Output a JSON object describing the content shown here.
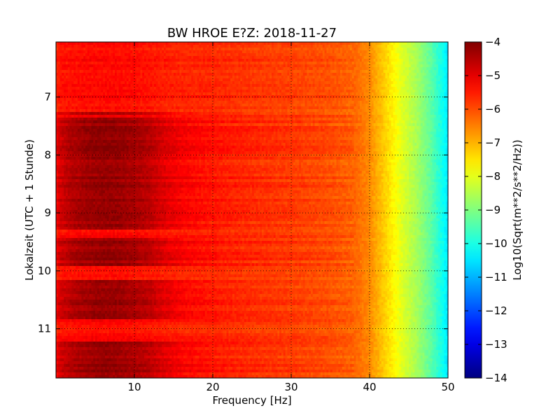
{
  "chart_data": {
    "type": "heatmap",
    "title": "BW HROE E?Z: 2018-11-27",
    "xlabel": "Frequency [Hz]",
    "ylabel": "Lokalzeit (UTC + 1 Stunde)",
    "colorbar_label": "Log10(Sqrt(m**2/s**2/Hz))",
    "xlim": [
      0,
      50
    ],
    "ylim": [
      6.05,
      11.85
    ],
    "y_inverted": true,
    "xticks": [
      10,
      20,
      30,
      40,
      50
    ],
    "xtick_labels": [
      "10",
      "20",
      "30",
      "40",
      "50"
    ],
    "yticks": [
      7,
      8,
      9,
      10,
      11
    ],
    "ytick_labels": [
      "7",
      "8",
      "9",
      "10",
      "11"
    ],
    "clim": [
      -14,
      -4
    ],
    "cticks": [
      -4,
      -5,
      -6,
      -7,
      -8,
      -9,
      -10,
      -11,
      -12,
      -13,
      -14
    ],
    "ctick_labels": [
      "−4",
      "−5",
      "−6",
      "−7",
      "−8",
      "−9",
      "−10",
      "−11",
      "−12",
      "−13",
      "−14"
    ],
    "colormap": "jet",
    "grid": "dotted",
    "profile": {
      "frequency": [
        0,
        0.5,
        2,
        4,
        6,
        8,
        10,
        12,
        14,
        16,
        20,
        25,
        30,
        35,
        38,
        40,
        42,
        44,
        46,
        48,
        49.5,
        50
      ],
      "quiet_level": [
        -5.6,
        -5.4,
        -5.35,
        -5.3,
        -5.3,
        -5.3,
        -5.35,
        -5.4,
        -5.5,
        -5.55,
        -5.6,
        -5.75,
        -5.85,
        -6.0,
        -6.2,
        -6.6,
        -7.3,
        -8.0,
        -8.6,
        -9.4,
        -10.2,
        -10.5
      ],
      "active_level": [
        -5.2,
        -4.8,
        -4.5,
        -4.3,
        -4.2,
        -4.25,
        -4.4,
        -4.6,
        -4.95,
        -5.2,
        -5.45,
        -5.65,
        -5.8,
        -6.0,
        -6.2,
        -6.6,
        -7.3,
        -8.0,
        -8.6,
        -9.4,
        -10.2,
        -10.5
      ]
    },
    "activity_periods": [
      {
        "start": 7.25,
        "end": 7.3
      },
      {
        "start": 7.35,
        "end": 9.3
      },
      {
        "start": 9.45,
        "end": 9.9
      },
      {
        "start": 10.15,
        "end": 10.85
      },
      {
        "start": 11.2,
        "end": 11.85
      }
    ]
  }
}
